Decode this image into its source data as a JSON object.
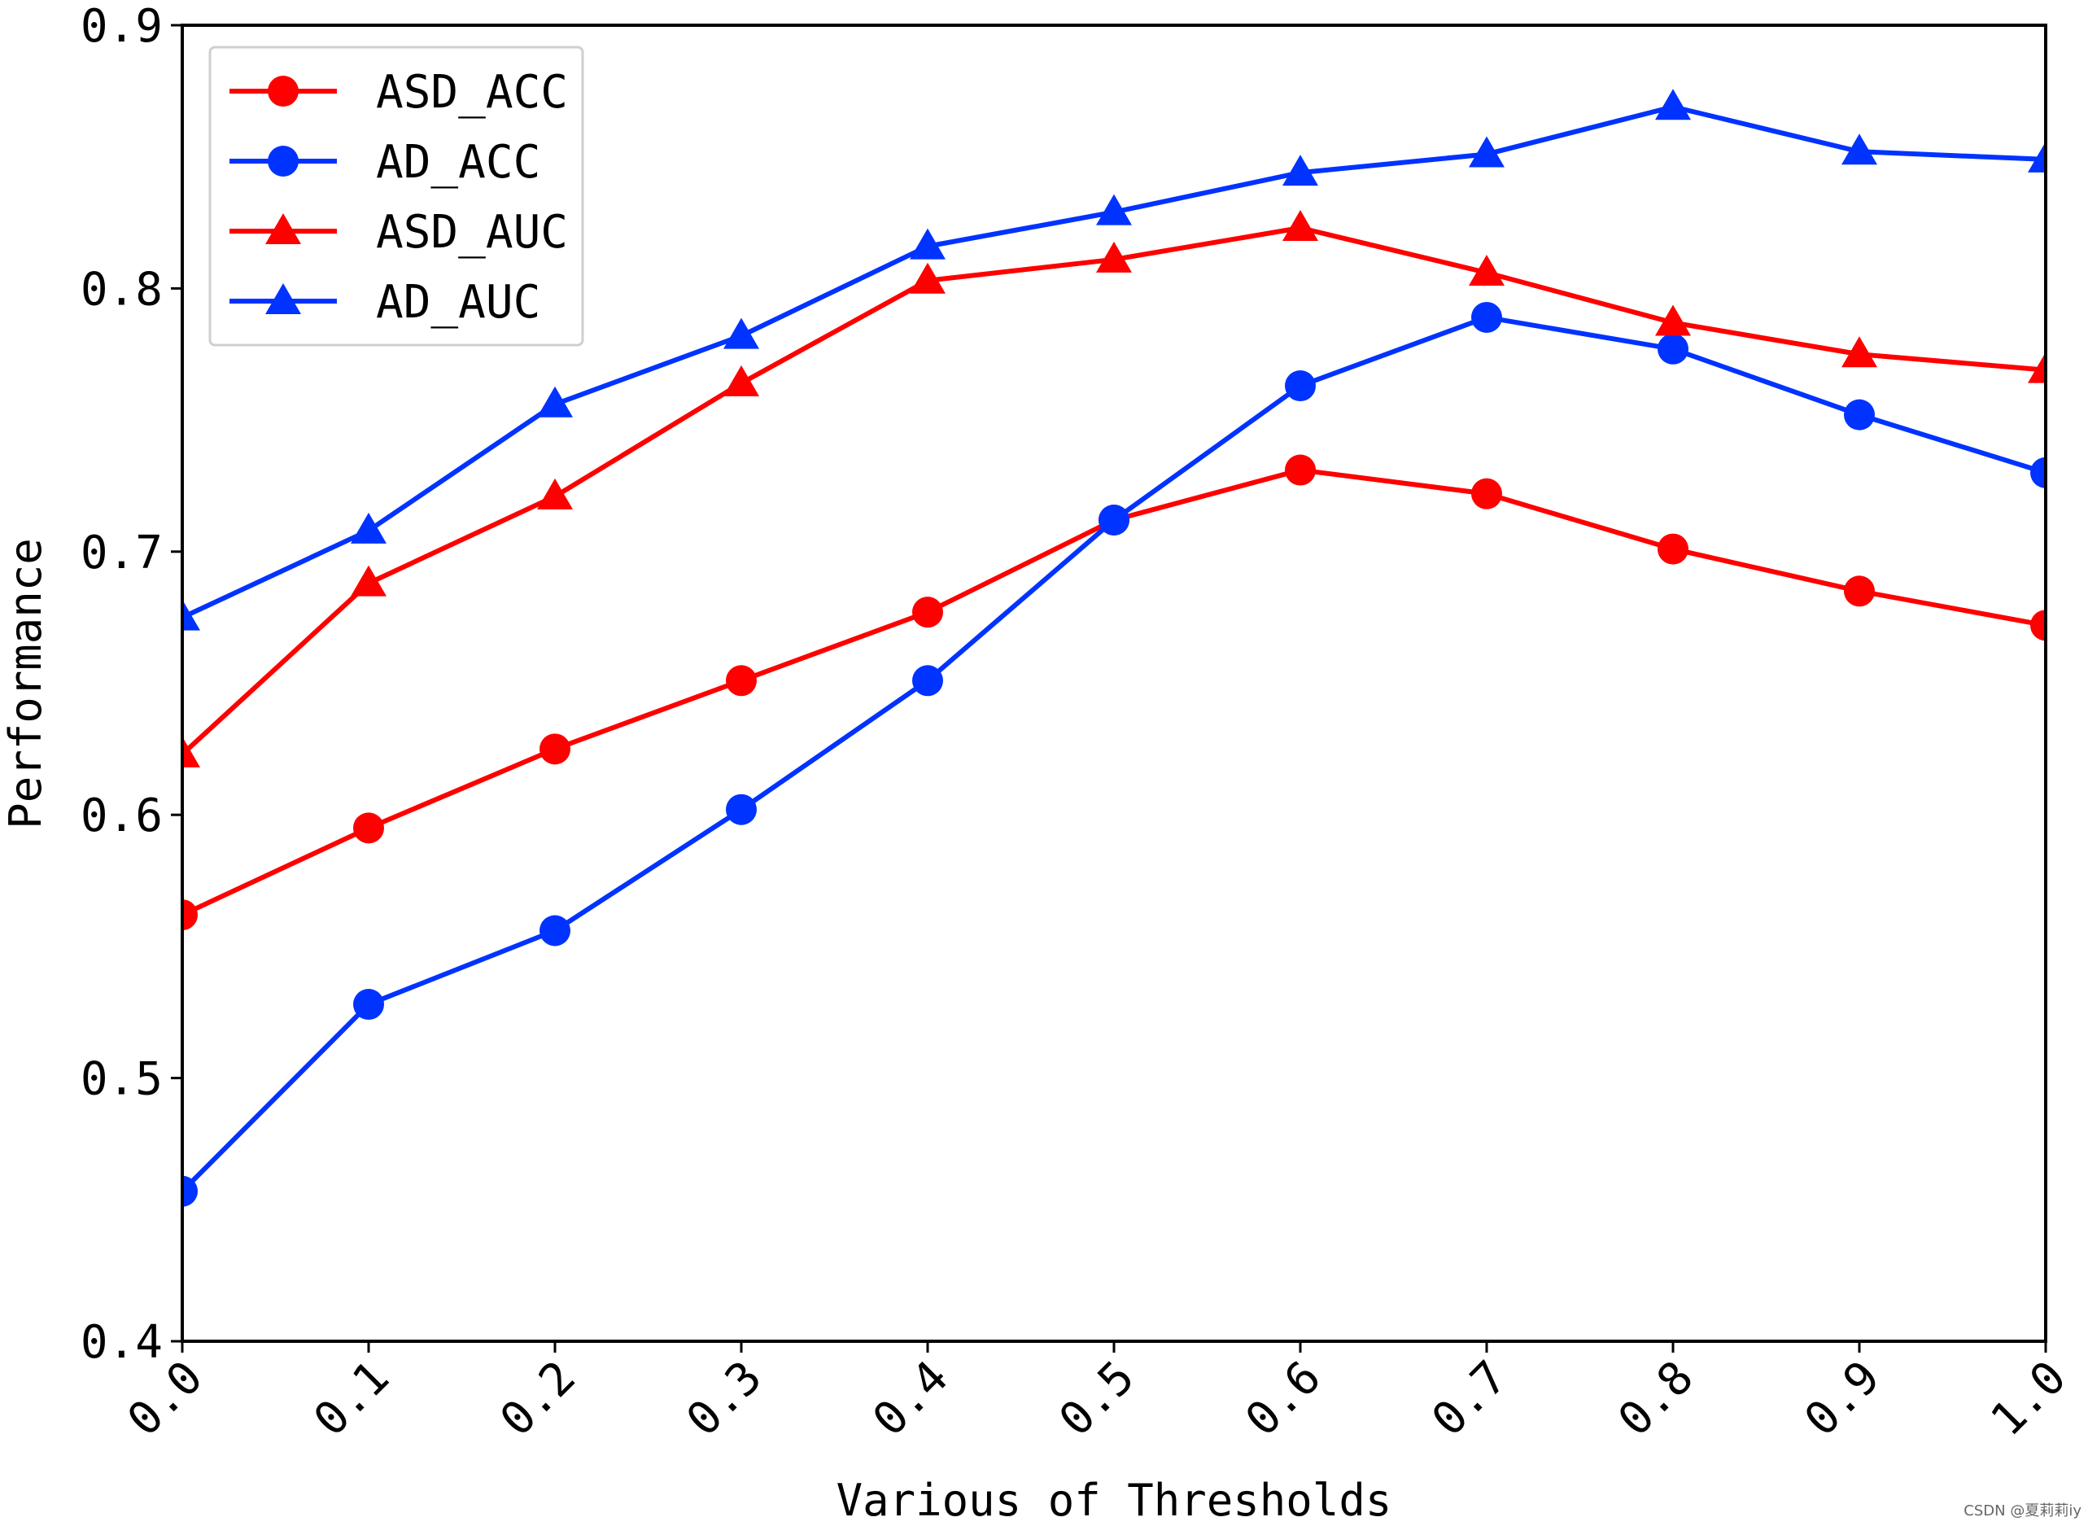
{
  "chart_data": {
    "type": "line",
    "xlabel": "Various of Thresholds",
    "ylabel": "Performance",
    "x": [
      0.0,
      0.1,
      0.2,
      0.3,
      0.4,
      0.5,
      0.6,
      0.7,
      0.8,
      0.9,
      1.0
    ],
    "x_tick_labels": [
      "0.0",
      "0.1",
      "0.2",
      "0.3",
      "0.4",
      "0.5",
      "0.6",
      "0.7",
      "0.8",
      "0.9",
      "1.0"
    ],
    "y_tick_labels": [
      "0.4",
      "0.5",
      "0.6",
      "0.7",
      "0.8",
      "0.9"
    ],
    "y_ticks": [
      0.4,
      0.5,
      0.6,
      0.7,
      0.8,
      0.9
    ],
    "xlim": [
      0.0,
      1.0
    ],
    "ylim": [
      0.4,
      0.9
    ],
    "grid": false,
    "legend_position": "top-left",
    "series": [
      {
        "name": "ASD_ACC",
        "color": "#ff0000",
        "marker": "circle",
        "values": [
          0.562,
          0.595,
          0.625,
          0.651,
          0.677,
          0.712,
          0.731,
          0.722,
          0.701,
          0.685,
          0.672
        ]
      },
      {
        "name": "AD_ACC",
        "color": "#0033ff",
        "marker": "circle",
        "values": [
          0.457,
          0.528,
          0.556,
          0.602,
          0.651,
          0.712,
          0.763,
          0.789,
          0.777,
          0.752,
          0.73
        ]
      },
      {
        "name": "ASD_AUC",
        "color": "#ff0000",
        "marker": "triangle",
        "values": [
          0.623,
          0.688,
          0.721,
          0.764,
          0.803,
          0.811,
          0.823,
          0.806,
          0.787,
          0.775,
          0.769
        ]
      },
      {
        "name": "AD_AUC",
        "color": "#0033ff",
        "marker": "triangle",
        "values": [
          0.675,
          0.708,
          0.756,
          0.782,
          0.816,
          0.829,
          0.844,
          0.851,
          0.869,
          0.852,
          0.849
        ]
      }
    ]
  },
  "watermark": "CSDN @夏莉莉iy"
}
